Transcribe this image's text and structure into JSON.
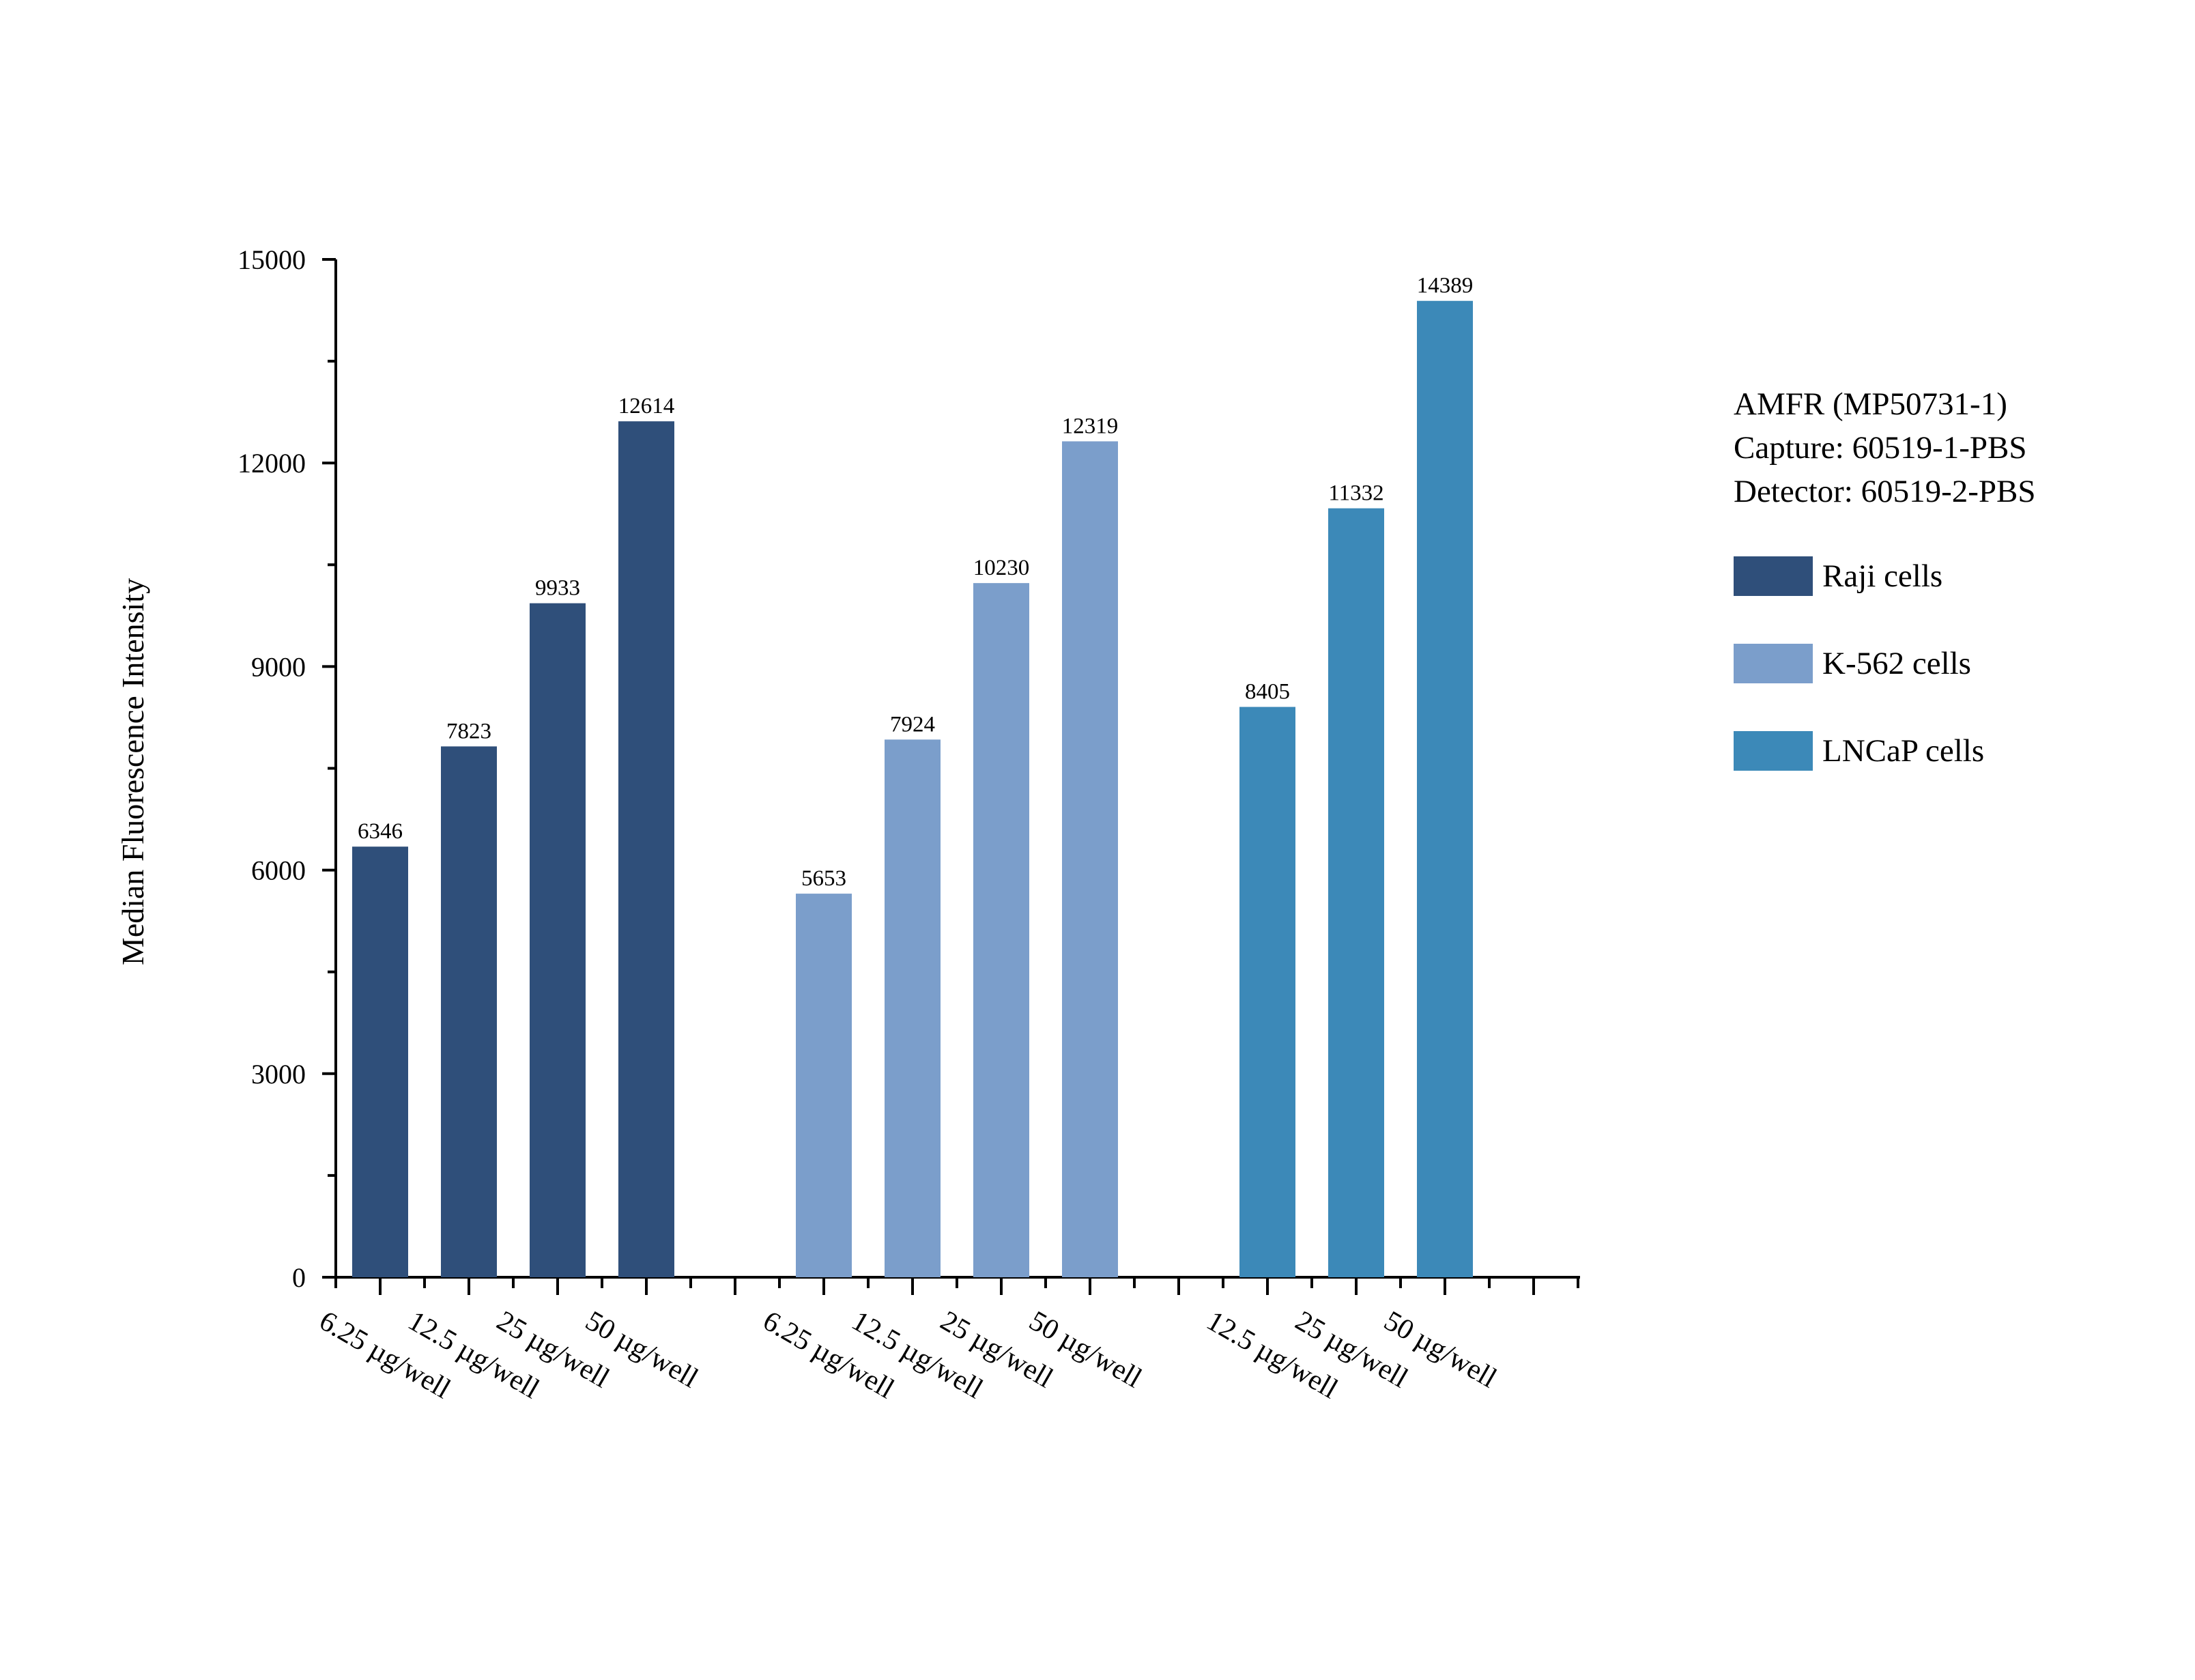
{
  "chart_data": {
    "type": "bar",
    "ylabel": "Median Fluorescence Intensity",
    "xlabel": "",
    "ylim": [
      0,
      15000
    ],
    "yticks": [
      0,
      3000,
      6000,
      9000,
      12000,
      15000
    ],
    "unit_suffix": "µg/well",
    "annotation": [
      "AMFR (MP50731-1)",
      "Capture: 60519-1-PBS",
      "Detector: 60519-2-PBS"
    ],
    "series": [
      {
        "name": "Raji cells",
        "color": "#2f4f7a",
        "categories": [
          "6.25 µg/well",
          "12.5 µg/well",
          "25 µg/well",
          "50 µg/well"
        ],
        "values": [
          6346,
          7823,
          9933,
          12614
        ]
      },
      {
        "name": "K-562 cells",
        "color": "#7b9ecb",
        "categories": [
          "6.25 µg/well",
          "12.5 µg/well",
          "25 µg/well",
          "50 µg/well"
        ],
        "values": [
          5653,
          7924,
          10230,
          12319
        ]
      },
      {
        "name": "LNCaP cells",
        "color": "#3c89b8",
        "categories": [
          "12.5 µg/well",
          "25 µg/well",
          "50 µg/well"
        ],
        "values": [
          8405,
          11332,
          14389
        ]
      }
    ]
  }
}
